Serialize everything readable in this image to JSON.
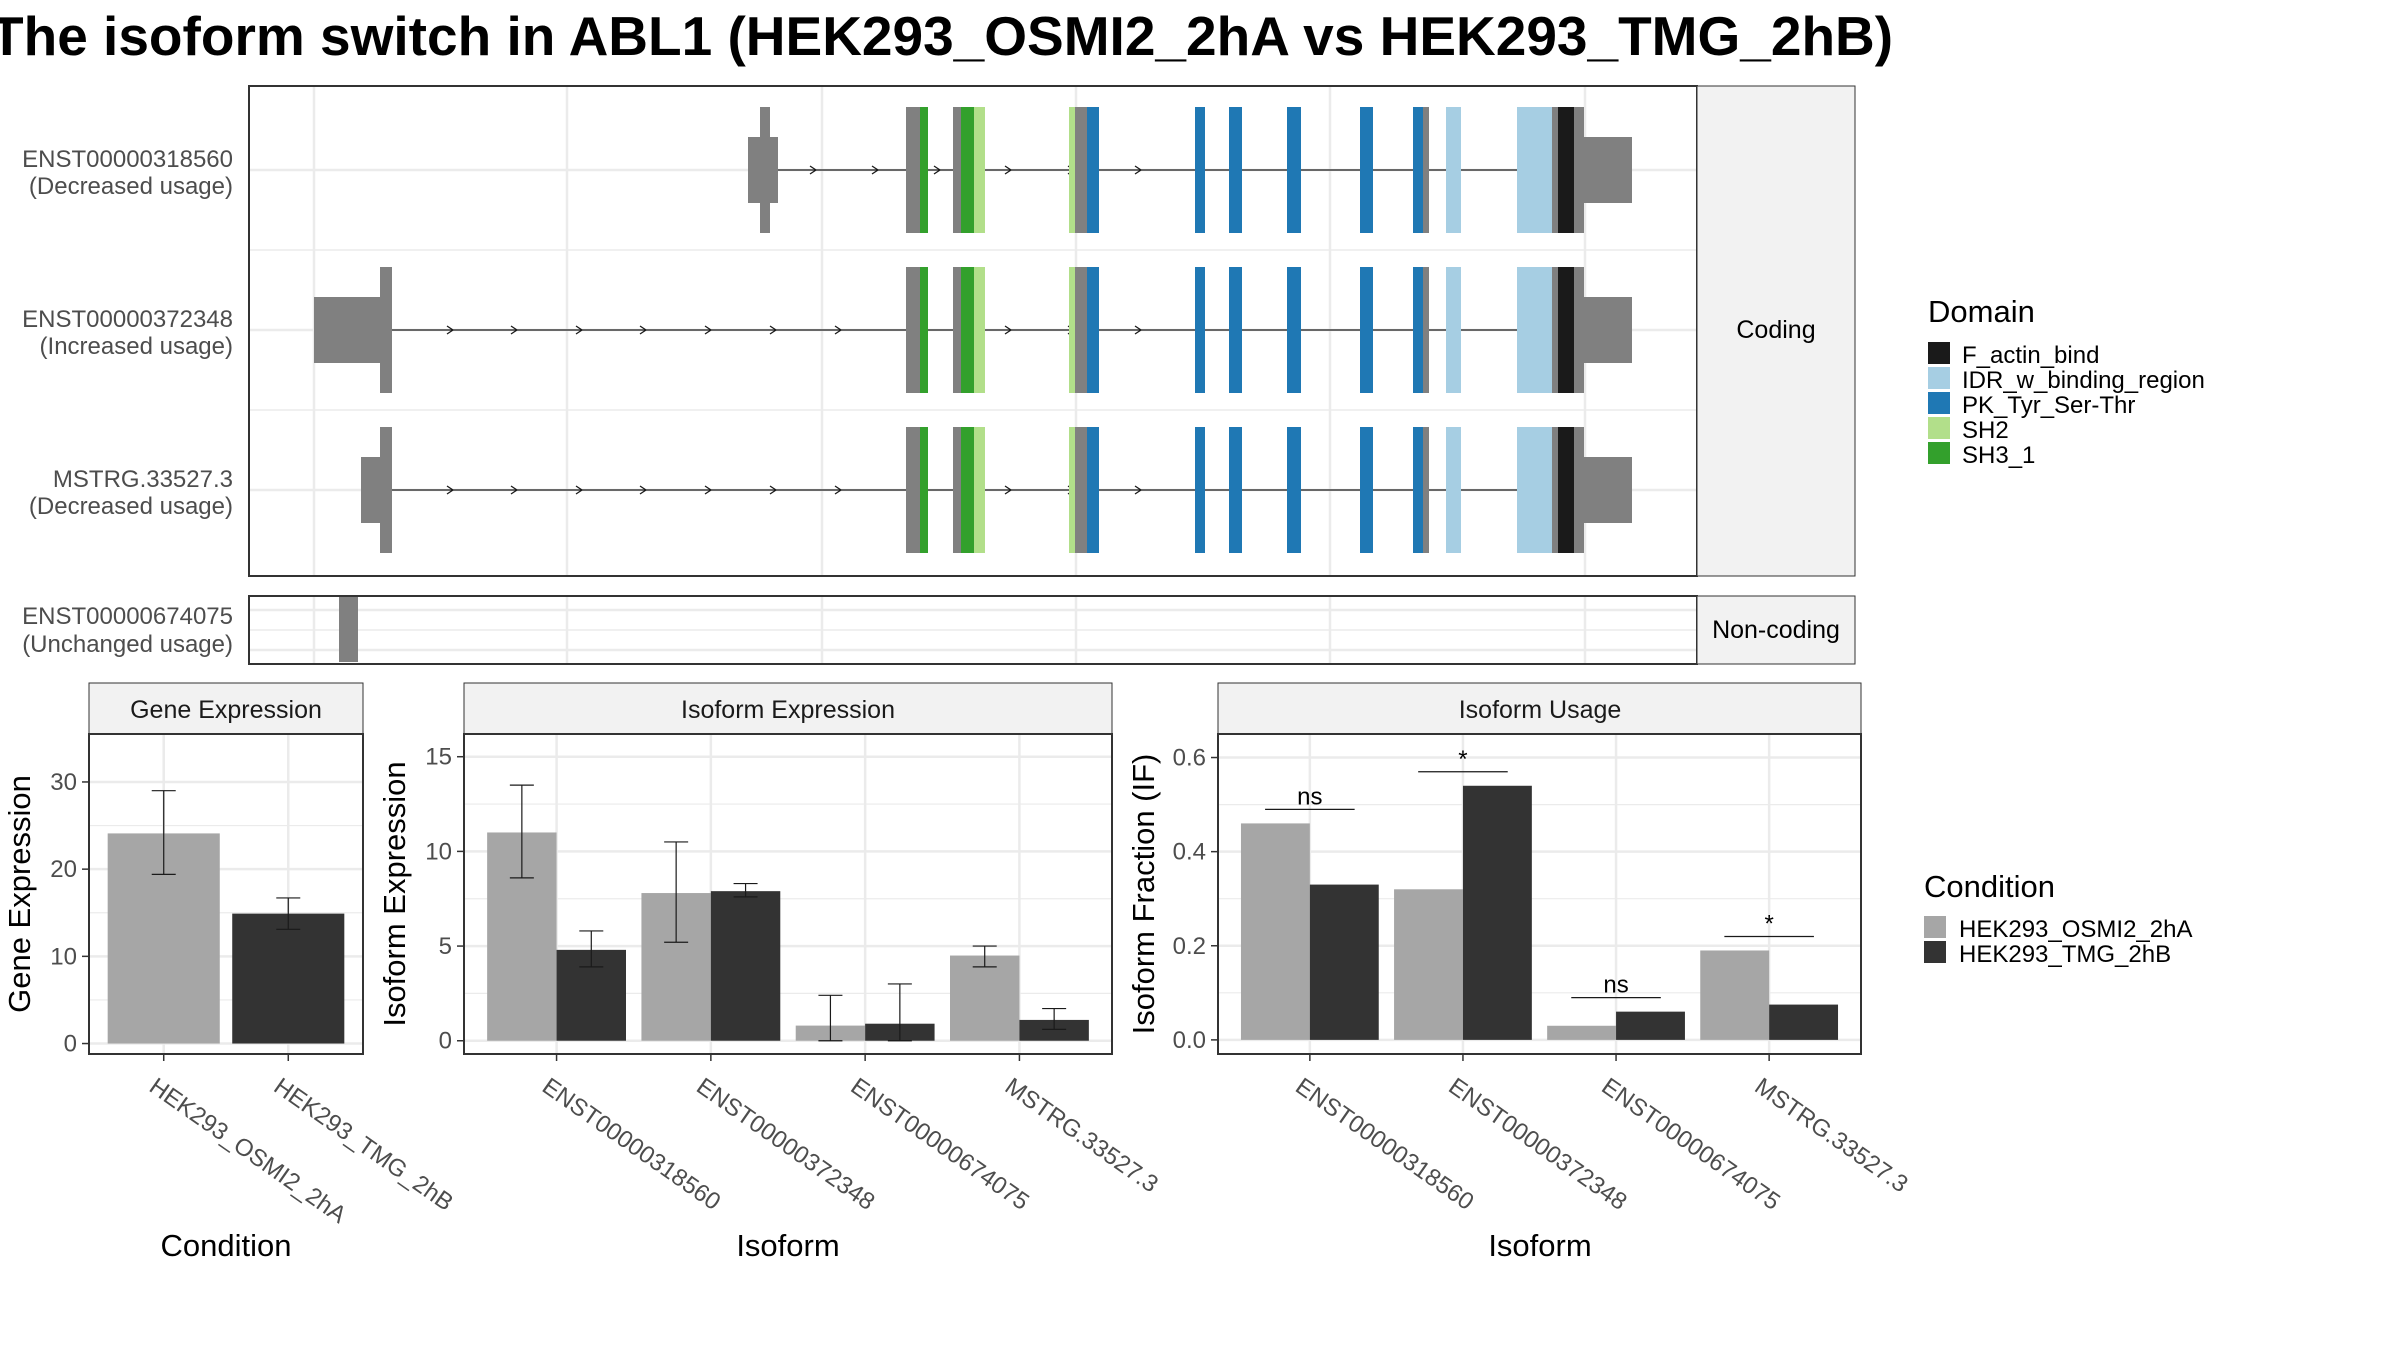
{
  "title": "The isoform switch in ABL1 (HEK293_OSMI2_2hA vs HEK293_TMG_2hB)",
  "colors": {
    "exon_utr": "#808080",
    "F_actin_bind": "#1a1a1a",
    "IDR_w_binding_region": "#a6cee3",
    "PK_Tyr_Ser-Thr": "#1f78b4",
    "SH2": "#b2df8a",
    "SH3_1": "#33a02c",
    "cond_a": "#a6a6a6",
    "cond_b": "#333333",
    "grid": "#ebebeb",
    "strip": "#f2f2f2"
  },
  "transcript_panel": {
    "strip_coding": "Coding",
    "strip_noncoding": "Non-coding",
    "transcripts": [
      {
        "id": "ENST00000318560",
        "usage": "(Decreased usage)",
        "group": "coding"
      },
      {
        "id": "ENST00000372348",
        "usage": "(Increased usage)",
        "group": "coding"
      },
      {
        "id": "MSTRG.33527.3",
        "usage": "(Decreased usage)",
        "group": "coding"
      },
      {
        "id": "ENST00000674075",
        "usage": "(Unchanged usage)",
        "group": "noncoding"
      }
    ]
  },
  "legend_domain": {
    "title": "Domain",
    "items": [
      {
        "label": "F_actin_bind",
        "color": "#1a1a1a"
      },
      {
        "label": "IDR_w_binding_region",
        "color": "#a6cee3"
      },
      {
        "label": "PK_Tyr_Ser-Thr",
        "color": "#1f78b4"
      },
      {
        "label": "SH2",
        "color": "#b2df8a"
      },
      {
        "label": "SH3_1",
        "color": "#33a02c"
      }
    ]
  },
  "legend_condition": {
    "title": "Condition",
    "items": [
      {
        "label": "HEK293_OSMI2_2hA",
        "color": "#a6a6a6"
      },
      {
        "label": "HEK293_TMG_2hB",
        "color": "#333333"
      }
    ]
  },
  "chart_data": [
    {
      "type": "bar",
      "title": "Gene Expression",
      "xlabel": "Condition",
      "ylabel": "Gene Expression",
      "ylim": [
        -1.2,
        35.5
      ],
      "yticks": [
        0,
        10,
        20,
        30
      ],
      "categories": [
        "HEK293_OSMI2_2hA",
        "HEK293_TMG_2hB"
      ],
      "values": [
        24.1,
        14.9
      ],
      "error_low": [
        19.4,
        13.1
      ],
      "error_high": [
        29.0,
        16.7
      ]
    },
    {
      "type": "bar",
      "title": "Isoform Expression",
      "xlabel": "Isoform",
      "ylabel": "Isoform Expression",
      "ylim": [
        -0.7,
        16.2
      ],
      "yticks": [
        0,
        5,
        10,
        15
      ],
      "categories": [
        "ENST00000318560",
        "ENST00000372348",
        "ENST00000674075",
        "MSTRG.33527.3"
      ],
      "series": [
        {
          "name": "HEK293_OSMI2_2hA",
          "values": [
            11.0,
            7.8,
            0.8,
            4.5
          ],
          "error_low": [
            8.6,
            5.2,
            0.0,
            3.9
          ],
          "error_high": [
            13.5,
            10.5,
            2.4,
            5.0
          ]
        },
        {
          "name": "HEK293_TMG_2hB",
          "values": [
            4.8,
            7.9,
            0.9,
            1.1
          ],
          "error_low": [
            3.9,
            7.6,
            0.0,
            0.6
          ],
          "error_high": [
            5.8,
            8.3,
            3.0,
            1.7
          ]
        }
      ]
    },
    {
      "type": "bar",
      "title": "Isoform Usage",
      "xlabel": "Isoform",
      "ylabel": "Isoform Fraction (IF)",
      "ylim": [
        -0.03,
        0.65
      ],
      "yticks": [
        "0.0",
        "0.2",
        "0.4",
        "0.6"
      ],
      "categories": [
        "ENST00000318560",
        "ENST00000372348",
        "ENST00000674075",
        "MSTRG.33527.3"
      ],
      "series": [
        {
          "name": "HEK293_OSMI2_2hA",
          "values": [
            0.46,
            0.32,
            0.03,
            0.19
          ]
        },
        {
          "name": "HEK293_TMG_2hB",
          "values": [
            0.33,
            0.54,
            0.06,
            0.075
          ]
        }
      ],
      "significance": [
        "ns",
        "*",
        "ns",
        "*"
      ]
    }
  ]
}
